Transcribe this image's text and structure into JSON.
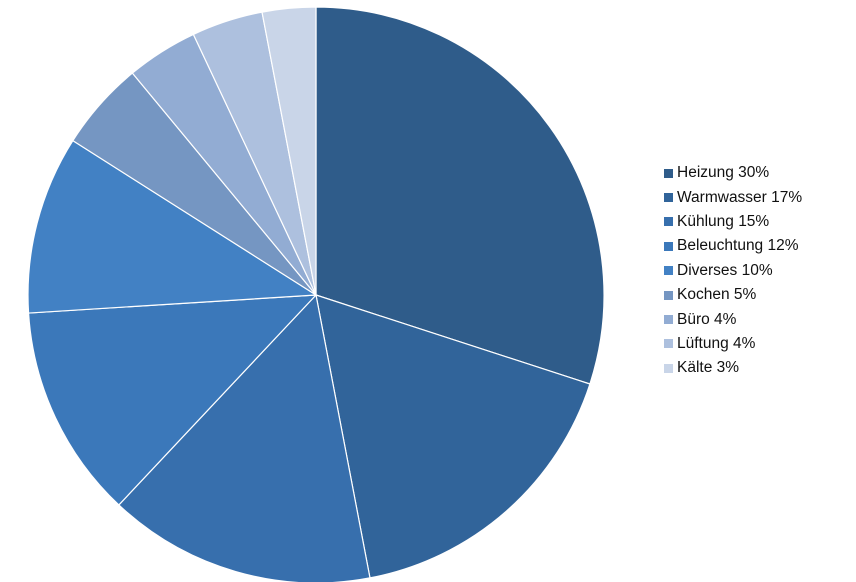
{
  "chart_data": {
    "type": "pie",
    "start_angle_deg": 0,
    "direction": "clockwise",
    "legend_position": "right",
    "slices": [
      {
        "label": "Heizung 30%",
        "category": "Heizung",
        "value": 30,
        "color": "#2f5c8a"
      },
      {
        "label": "Warmwasser 17%",
        "category": "Warmwasser",
        "value": 17,
        "color": "#31649a"
      },
      {
        "label": "Kühlung 15%",
        "category": "Kühlung",
        "value": 15,
        "color": "#376fad"
      },
      {
        "label": "Beleuchtung 12%",
        "category": "Beleuchtung",
        "value": 12,
        "color": "#3b78ba"
      },
      {
        "label": "Diverses 10%",
        "category": "Diverses",
        "value": 10,
        "color": "#4281c4"
      },
      {
        "label": "Kochen 5%",
        "category": "Kochen",
        "value": 5,
        "color": "#7596c2"
      },
      {
        "label": "Büro 4%",
        "category": "Büro",
        "value": 4,
        "color": "#92acd3"
      },
      {
        "label": "Lüftung 4%",
        "category": "Lüftung",
        "value": 4,
        "color": "#adc0de"
      },
      {
        "label": "Kälte 3%",
        "category": "Kälte",
        "value": 3,
        "color": "#c9d5e8"
      }
    ]
  }
}
